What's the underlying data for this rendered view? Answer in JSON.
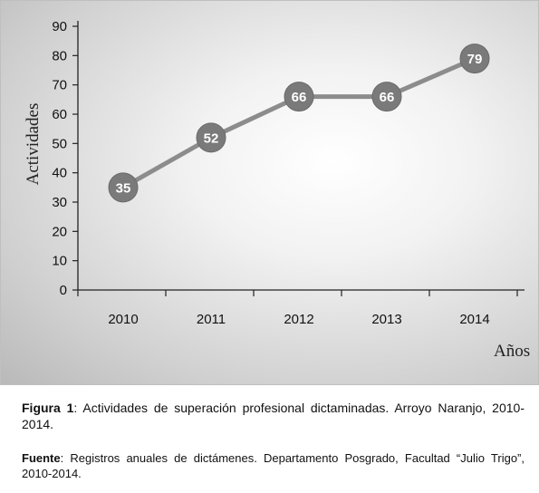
{
  "chart_data": {
    "type": "line",
    "categories": [
      "2010",
      "2011",
      "2012",
      "2013",
      "2014"
    ],
    "series": [
      {
        "values": [
          35,
          52,
          66,
          66,
          79
        ]
      }
    ],
    "point_labels": [
      "35",
      "52",
      "66",
      "66",
      "79"
    ],
    "yticks": [
      "0",
      "10",
      "20",
      "30",
      "40",
      "50",
      "60",
      "70",
      "80",
      "90"
    ],
    "ylim": [
      0,
      90
    ],
    "ylabel": "Actividades",
    "xlabel": "Años",
    "grid": false,
    "legend": "none",
    "line_color": "#8c8c8c",
    "marker_color": "#7a7a7a"
  },
  "caption": {
    "figure_label": "Figura 1",
    "figure_text": ": Actividades de superación profesional dictaminadas. Arroyo Naranjo, 2010-2014.",
    "source_label": "Fuente",
    "source_text": ": Registros anuales de dictámenes. Departamento Posgrado, Facultad “Julio Trigo”, 2010-2014."
  }
}
